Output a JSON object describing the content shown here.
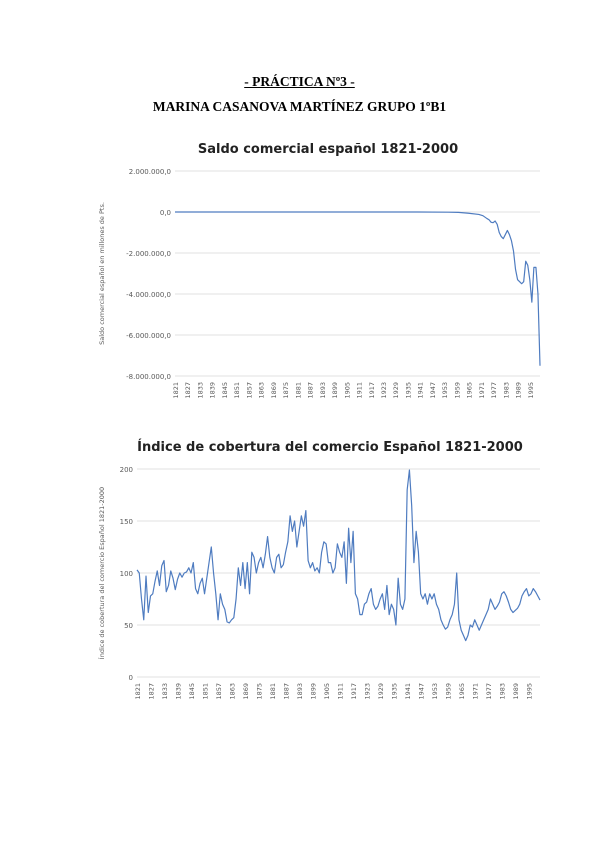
{
  "document": {
    "title": "- PRÁCTICA Nº3 -",
    "subtitle": "MARINA CASANOVA MARTÍNEZ GRUPO 1ºB1"
  },
  "chart_data": [
    {
      "type": "line",
      "title": "Saldo comercial español 1821-2000",
      "ylabel": "Saldo comercial español en millones de Pts.",
      "xlabel": "",
      "ylim": [
        -8000000,
        2000000
      ],
      "grid": true,
      "yticks": [
        "2.000.000,0",
        "0,0",
        "-2.000.000,0",
        "-4.000.000,0",
        "-6.000.000,0",
        "-8.000.000,0"
      ],
      "ytick_values": [
        2000000,
        0,
        -2000000,
        -4000000,
        -6000000,
        -8000000
      ],
      "xticks": [
        "1821",
        "1827",
        "1833",
        "1839",
        "1845",
        "1851",
        "1857",
        "1863",
        "1869",
        "1875",
        "1881",
        "1887",
        "1893",
        "1899",
        "1905",
        "1911",
        "1917",
        "1923",
        "1929",
        "1935",
        "1941",
        "1947",
        "1953",
        "1959",
        "1965",
        "1971",
        "1977",
        "1983",
        "1989",
        "1995"
      ],
      "color": "#4f7cc0",
      "series": [
        {
          "name": "",
          "points": [
            [
              1821,
              0
            ],
            [
              1940,
              0
            ],
            [
              1955,
              -10000
            ],
            [
              1960,
              -20000
            ],
            [
              1965,
              -60000
            ],
            [
              1970,
              -120000
            ],
            [
              1972,
              -180000
            ],
            [
              1974,
              -320000
            ],
            [
              1975,
              -380000
            ],
            [
              1976,
              -500000
            ],
            [
              1977,
              -520000
            ],
            [
              1978,
              -440000
            ],
            [
              1979,
              -600000
            ],
            [
              1980,
              -1000000
            ],
            [
              1981,
              -1200000
            ],
            [
              1982,
              -1300000
            ],
            [
              1983,
              -1100000
            ],
            [
              1984,
              -900000
            ],
            [
              1985,
              -1100000
            ],
            [
              1986,
              -1400000
            ],
            [
              1987,
              -1900000
            ],
            [
              1988,
              -2800000
            ],
            [
              1989,
              -3300000
            ],
            [
              1990,
              -3400000
            ],
            [
              1991,
              -3500000
            ],
            [
              1992,
              -3400000
            ],
            [
              1993,
              -2400000
            ],
            [
              1994,
              -2600000
            ],
            [
              1995,
              -3300000
            ],
            [
              1996,
              -4400000
            ],
            [
              1997,
              -2700000
            ],
            [
              1998,
              -2700000
            ],
            [
              1999,
              -4000000
            ],
            [
              2000,
              -7500000
            ]
          ]
        }
      ]
    },
    {
      "type": "line",
      "title": "Índice de cobertura del comercio Español 1821-2000",
      "ylabel": "Índice de cobertura del comercio Español 1821-2000",
      "xlabel": "",
      "ylim": [
        0,
        200
      ],
      "grid": true,
      "yticks": [
        "200",
        "150",
        "100",
        "50",
        "0"
      ],
      "ytick_values": [
        200,
        150,
        100,
        50,
        0
      ],
      "xticks": [
        "1821",
        "1827",
        "1833",
        "1839",
        "1845",
        "1851",
        "1857",
        "1863",
        "1869",
        "1875",
        "1881",
        "1887",
        "1893",
        "1899",
        "1905",
        "1911",
        "1917",
        "1923",
        "1929",
        "1935",
        "1941",
        "1947",
        "1953",
        "1959",
        "1965",
        "1971",
        "1977",
        "1983",
        "1989",
        "1995"
      ],
      "color": "#4f7cc0",
      "series": [
        {
          "name": "",
          "points": [
            [
              1821,
              103
            ],
            [
              1822,
              100
            ],
            [
              1823,
              75
            ],
            [
              1824,
              55
            ],
            [
              1825,
              97
            ],
            [
              1826,
              62
            ],
            [
              1827,
              78
            ],
            [
              1828,
              80
            ],
            [
              1829,
              92
            ],
            [
              1830,
              102
            ],
            [
              1831,
              88
            ],
            [
              1832,
              107
            ],
            [
              1833,
              112
            ],
            [
              1834,
              82
            ],
            [
              1835,
              88
            ],
            [
              1836,
              102
            ],
            [
              1837,
              95
            ],
            [
              1838,
              84
            ],
            [
              1839,
              94
            ],
            [
              1840,
              100
            ],
            [
              1841,
              96
            ],
            [
              1842,
              100
            ],
            [
              1843,
              101
            ],
            [
              1844,
              105
            ],
            [
              1845,
              100
            ],
            [
              1846,
              110
            ],
            [
              1847,
              85
            ],
            [
              1848,
              80
            ],
            [
              1849,
              90
            ],
            [
              1850,
              95
            ],
            [
              1851,
              80
            ],
            [
              1852,
              95
            ],
            [
              1853,
              110
            ],
            [
              1854,
              125
            ],
            [
              1855,
              100
            ],
            [
              1856,
              80
            ],
            [
              1857,
              55
            ],
            [
              1858,
              80
            ],
            [
              1859,
              70
            ],
            [
              1860,
              65
            ],
            [
              1861,
              53
            ],
            [
              1862,
              52
            ],
            [
              1863,
              55
            ],
            [
              1864,
              57
            ],
            [
              1865,
              75
            ],
            [
              1866,
              105
            ],
            [
              1867,
              88
            ],
            [
              1868,
              110
            ],
            [
              1869,
              85
            ],
            [
              1870,
              110
            ],
            [
              1871,
              80
            ],
            [
              1872,
              120
            ],
            [
              1873,
              115
            ],
            [
              1874,
              100
            ],
            [
              1875,
              110
            ],
            [
              1876,
              115
            ],
            [
              1877,
              105
            ],
            [
              1878,
              118
            ],
            [
              1879,
              135
            ],
            [
              1880,
              115
            ],
            [
              1881,
              105
            ],
            [
              1882,
              100
            ],
            [
              1883,
              115
            ],
            [
              1884,
              118
            ],
            [
              1885,
              105
            ],
            [
              1886,
              108
            ],
            [
              1887,
              120
            ],
            [
              1888,
              130
            ],
            [
              1889,
              155
            ],
            [
              1890,
              140
            ],
            [
              1891,
              150
            ],
            [
              1892,
              125
            ],
            [
              1893,
              140
            ],
            [
              1894,
              155
            ],
            [
              1895,
              145
            ],
            [
              1896,
              160
            ],
            [
              1897,
              112
            ],
            [
              1898,
              105
            ],
            [
              1899,
              110
            ],
            [
              1900,
              102
            ],
            [
              1901,
              105
            ],
            [
              1902,
              100
            ],
            [
              1903,
              120
            ],
            [
              1904,
              130
            ],
            [
              1905,
              128
            ],
            [
              1906,
              110
            ],
            [
              1907,
              110
            ],
            [
              1908,
              100
            ],
            [
              1909,
              105
            ],
            [
              1910,
              128
            ],
            [
              1911,
              120
            ],
            [
              1912,
              115
            ],
            [
              1913,
              130
            ],
            [
              1914,
              90
            ],
            [
              1915,
              143
            ],
            [
              1916,
              110
            ],
            [
              1917,
              140
            ],
            [
              1918,
              80
            ],
            [
              1919,
              75
            ],
            [
              1920,
              60
            ],
            [
              1921,
              60
            ],
            [
              1922,
              70
            ],
            [
              1923,
              72
            ],
            [
              1924,
              80
            ],
            [
              1925,
              85
            ],
            [
              1926,
              70
            ],
            [
              1927,
              65
            ],
            [
              1928,
              68
            ],
            [
              1929,
              75
            ],
            [
              1930,
              80
            ],
            [
              1931,
              65
            ],
            [
              1932,
              88
            ],
            [
              1933,
              60
            ],
            [
              1934,
              70
            ],
            [
              1935,
              65
            ],
            [
              1936,
              50
            ],
            [
              1937,
              95
            ],
            [
              1938,
              70
            ],
            [
              1939,
              65
            ],
            [
              1940,
              75
            ],
            [
              1941,
              180
            ],
            [
              1942,
              199
            ],
            [
              1943,
              165
            ],
            [
              1944,
              110
            ],
            [
              1945,
              140
            ],
            [
              1946,
              120
            ],
            [
              1947,
              80
            ],
            [
              1948,
              75
            ],
            [
              1949,
              80
            ],
            [
              1950,
              70
            ],
            [
              1951,
              80
            ],
            [
              1952,
              75
            ],
            [
              1953,
              80
            ],
            [
              1954,
              70
            ],
            [
              1955,
              65
            ],
            [
              1956,
              55
            ],
            [
              1957,
              50
            ],
            [
              1958,
              46
            ],
            [
              1959,
              48
            ],
            [
              1960,
              55
            ],
            [
              1961,
              60
            ],
            [
              1962,
              70
            ],
            [
              1963,
              100
            ],
            [
              1964,
              55
            ],
            [
              1965,
              45
            ],
            [
              1966,
              40
            ],
            [
              1967,
              35
            ],
            [
              1968,
              40
            ],
            [
              1969,
              50
            ],
            [
              1970,
              48
            ],
            [
              1971,
              55
            ],
            [
              1972,
              50
            ],
            [
              1973,
              45
            ],
            [
              1974,
              50
            ],
            [
              1975,
              55
            ],
            [
              1976,
              60
            ],
            [
              1977,
              65
            ],
            [
              1978,
              75
            ],
            [
              1979,
              70
            ],
            [
              1980,
              65
            ],
            [
              1981,
              68
            ],
            [
              1982,
              72
            ],
            [
              1983,
              80
            ],
            [
              1984,
              82
            ],
            [
              1985,
              78
            ],
            [
              1986,
              72
            ],
            [
              1987,
              65
            ],
            [
              1988,
              62
            ],
            [
              1989,
              64
            ],
            [
              1990,
              66
            ],
            [
              1991,
              70
            ],
            [
              1992,
              78
            ],
            [
              1993,
              82
            ],
            [
              1994,
              85
            ],
            [
              1995,
              78
            ],
            [
              1996,
              80
            ],
            [
              1997,
              85
            ],
            [
              1998,
              82
            ],
            [
              1999,
              78
            ],
            [
              2000,
              74
            ]
          ]
        }
      ]
    }
  ]
}
